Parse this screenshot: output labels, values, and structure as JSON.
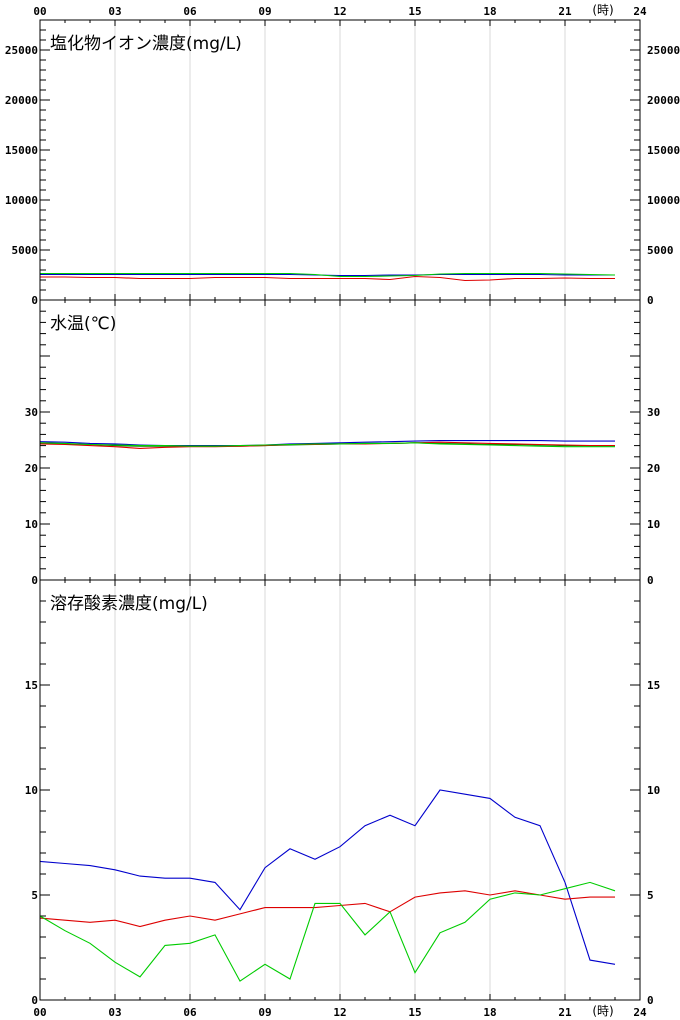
{
  "x_axis": {
    "ticks": [
      "00",
      "03",
      "06",
      "09",
      "12",
      "15",
      "18",
      "21",
      "24"
    ],
    "unit_label": "(時)",
    "range": [
      0,
      24
    ]
  },
  "colors": {
    "series_blue": "#0000cc",
    "series_red": "#dd0000",
    "series_green": "#00cc00",
    "series_dark_green": "#007700",
    "grid": "#d8d8d8",
    "axis": "#000000"
  },
  "chart_data": [
    {
      "type": "line",
      "title": "塩化物イオン濃度(mg/L)",
      "ylim": [
        0,
        28000
      ],
      "y_ticks": [
        0,
        5000,
        10000,
        15000,
        20000,
        25000
      ],
      "y_tick_labels": [
        "0",
        "5000",
        "10000",
        "15000",
        "20000",
        "25000"
      ],
      "series": [
        {
          "color": "#0000cc",
          "x": [
            0,
            1,
            2,
            3,
            4,
            5,
            6,
            7,
            8,
            9,
            10,
            11,
            12,
            13,
            14,
            15,
            16,
            17,
            18,
            19,
            20,
            21,
            22,
            23
          ],
          "values": [
            2550,
            2550,
            2550,
            2550,
            2550,
            2550,
            2550,
            2550,
            2550,
            2550,
            2550,
            2500,
            2450,
            2450,
            2500,
            2500,
            2550,
            2550,
            2550,
            2550,
            2550,
            2500,
            2500,
            2500
          ]
        },
        {
          "color": "#00cc00",
          "x": [
            0,
            1,
            2,
            3,
            4,
            5,
            6,
            7,
            8,
            9,
            10,
            11,
            12,
            13,
            14,
            15,
            16,
            17,
            18,
            19,
            20,
            21,
            22,
            23
          ],
          "values": [
            2650,
            2650,
            2650,
            2650,
            2650,
            2650,
            2650,
            2650,
            2650,
            2650,
            2650,
            2550,
            2350,
            2350,
            2400,
            2450,
            2600,
            2650,
            2650,
            2650,
            2650,
            2600,
            2550,
            2500
          ]
        },
        {
          "color": "#dd0000",
          "x": [
            0,
            1,
            2,
            3,
            4,
            5,
            6,
            7,
            8,
            9,
            10,
            11,
            12,
            13,
            14,
            15,
            16,
            17,
            18,
            19,
            20,
            21,
            22,
            23
          ],
          "values": [
            2300,
            2300,
            2250,
            2250,
            2150,
            2150,
            2150,
            2250,
            2250,
            2250,
            2150,
            2150,
            2150,
            2150,
            2050,
            2350,
            2250,
            1950,
            2000,
            2150,
            2150,
            2200,
            2150,
            2150
          ]
        }
      ]
    },
    {
      "type": "line",
      "title": "水温(℃)",
      "ylim": [
        0,
        50
      ],
      "y_ticks": [
        0,
        10,
        20,
        30
      ],
      "y_tick_labels": [
        "0",
        "10",
        "20",
        "30"
      ],
      "series": [
        {
          "color": "#0000cc",
          "x": [
            0,
            1,
            2,
            3,
            4,
            5,
            6,
            7,
            8,
            9,
            10,
            11,
            12,
            13,
            14,
            15,
            16,
            17,
            18,
            19,
            20,
            21,
            22,
            23
          ],
          "values": [
            24.7,
            24.6,
            24.4,
            24.3,
            24.1,
            24.0,
            24.0,
            24.0,
            24.0,
            24.1,
            24.3,
            24.4,
            24.5,
            24.6,
            24.7,
            24.8,
            24.9,
            24.9,
            24.9,
            24.9,
            24.9,
            24.8,
            24.8,
            24.8
          ]
        },
        {
          "color": "#007700",
          "x": [
            0,
            1,
            2,
            3,
            4,
            5,
            6,
            7,
            8,
            9,
            10,
            11,
            12,
            13,
            14,
            15,
            16,
            17,
            18,
            19,
            20,
            21,
            22,
            23
          ],
          "values": [
            24.4,
            24.3,
            24.2,
            24.0,
            23.9,
            23.9,
            23.9,
            23.9,
            23.9,
            24.0,
            24.1,
            24.2,
            24.3,
            24.4,
            24.4,
            24.5,
            24.4,
            24.3,
            24.2,
            24.2,
            24.1,
            24.0,
            24.0,
            24.0
          ]
        },
        {
          "color": "#dd0000",
          "x": [
            0,
            1,
            2,
            3,
            4,
            5,
            6,
            7,
            8,
            9,
            10,
            11,
            12,
            13,
            14,
            15,
            16,
            17,
            18,
            19,
            20,
            21,
            22,
            23
          ],
          "values": [
            24.3,
            24.2,
            24.0,
            23.8,
            23.5,
            23.7,
            23.8,
            23.8,
            23.9,
            24.0,
            24.2,
            24.2,
            24.3,
            24.3,
            24.4,
            24.5,
            24.6,
            24.5,
            24.4,
            24.3,
            24.2,
            24.1,
            24.0,
            24.0
          ]
        },
        {
          "color": "#00cc00",
          "x": [
            0,
            1,
            2,
            3,
            4,
            5,
            6,
            7,
            8,
            9,
            10,
            11,
            12,
            13,
            14,
            15,
            16,
            17,
            18,
            19,
            20,
            21,
            22,
            23
          ],
          "values": [
            24.5,
            24.4,
            24.2,
            24.1,
            24.0,
            24.0,
            23.9,
            23.9,
            24.0,
            24.1,
            24.2,
            24.3,
            24.3,
            24.4,
            24.4,
            24.5,
            24.3,
            24.2,
            24.1,
            24.0,
            23.9,
            23.8,
            23.8,
            23.8
          ]
        }
      ]
    },
    {
      "type": "line",
      "title": "溶存酸素濃度(mg/L)",
      "ylim": [
        0,
        20
      ],
      "y_ticks": [
        0,
        5,
        10,
        15
      ],
      "y_tick_labels": [
        "0",
        "5",
        "10",
        "15"
      ],
      "series": [
        {
          "color": "#0000cc",
          "x": [
            0,
            1,
            2,
            3,
            4,
            5,
            6,
            7,
            8,
            9,
            10,
            11,
            12,
            13,
            14,
            15,
            16,
            17,
            18,
            19,
            20,
            21,
            22,
            23
          ],
          "values": [
            6.6,
            6.5,
            6.4,
            6.2,
            5.9,
            5.8,
            5.8,
            5.6,
            4.3,
            6.3,
            7.2,
            6.7,
            7.3,
            8.3,
            8.8,
            8.3,
            10.0,
            9.8,
            9.6,
            8.7,
            8.3,
            5.6,
            1.9,
            1.7
          ]
        },
        {
          "color": "#dd0000",
          "x": [
            0,
            1,
            2,
            3,
            4,
            5,
            6,
            7,
            8,
            9,
            10,
            11,
            12,
            13,
            14,
            15,
            16,
            17,
            18,
            19,
            20,
            21,
            22,
            23
          ],
          "values": [
            3.9,
            3.8,
            3.7,
            3.8,
            3.5,
            3.8,
            4.0,
            3.8,
            4.1,
            4.4,
            4.4,
            4.4,
            4.5,
            4.6,
            4.2,
            4.9,
            5.1,
            5.2,
            5.0,
            5.2,
            5.0,
            4.8,
            4.9,
            4.9
          ]
        },
        {
          "color": "#00cc00",
          "x": [
            0,
            1,
            2,
            3,
            4,
            5,
            6,
            7,
            8,
            9,
            10,
            11,
            12,
            13,
            14,
            15,
            16,
            17,
            18,
            19,
            20,
            21,
            22,
            23
          ],
          "values": [
            4.0,
            3.3,
            2.7,
            1.8,
            1.1,
            2.6,
            2.7,
            3.1,
            0.9,
            1.7,
            1.0,
            4.6,
            4.6,
            3.1,
            4.2,
            1.3,
            3.2,
            3.7,
            4.8,
            5.1,
            5.0,
            5.3,
            5.6,
            5.2
          ]
        }
      ]
    }
  ]
}
